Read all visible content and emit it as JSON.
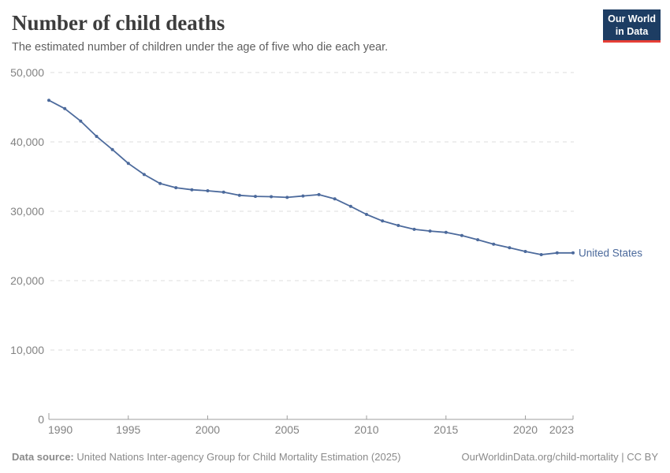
{
  "header": {
    "title": "Number of child deaths",
    "subtitle": "The estimated number of children under the age of five who die each year.",
    "logo": {
      "line1": "Our World",
      "line2": "in Data",
      "bg_color": "#1d3d63",
      "stripe_color": "#e63e36",
      "text_color": "#ffffff"
    }
  },
  "chart_data": {
    "type": "line",
    "title": "Number of child deaths",
    "xlabel": "",
    "ylabel": "",
    "x": [
      1990,
      1991,
      1992,
      1993,
      1994,
      1995,
      1996,
      1997,
      1998,
      1999,
      2000,
      2001,
      2002,
      2003,
      2004,
      2005,
      2006,
      2007,
      2008,
      2009,
      2010,
      2011,
      2012,
      2013,
      2014,
      2015,
      2016,
      2017,
      2018,
      2019,
      2020,
      2021,
      2022,
      2023
    ],
    "series": [
      {
        "name": "United States",
        "color": "#4C6A9C",
        "values": [
          46000,
          44800,
          43000,
          40800,
          38900,
          36900,
          35300,
          34000,
          33400,
          33100,
          32950,
          32750,
          32300,
          32150,
          32100,
          32000,
          32200,
          32400,
          31800,
          30700,
          29550,
          28600,
          27950,
          27400,
          27150,
          26950,
          26500,
          25900,
          25250,
          24750,
          24200,
          23750,
          24000,
          24000
        ]
      }
    ],
    "xlim": [
      1990,
      2023
    ],
    "ylim": [
      0,
      50000
    ],
    "x_ticks": [
      1990,
      1995,
      2000,
      2005,
      2010,
      2015,
      2020,
      2023
    ],
    "y_ticks": [
      0,
      10000,
      20000,
      30000,
      40000,
      50000
    ],
    "grid": "horizontal-dashed",
    "legend": "end-of-line-label",
    "colors": {
      "grid": "#dedede",
      "axis": "#9e9e9e",
      "tick_label": "#828282"
    }
  },
  "footer": {
    "source_label": "Data source:",
    "source_text": " United Nations Inter-agency Group for Child Mortality Estimation (2025)",
    "attribution": "OurWorldinData.org/child-mortality | CC BY"
  }
}
